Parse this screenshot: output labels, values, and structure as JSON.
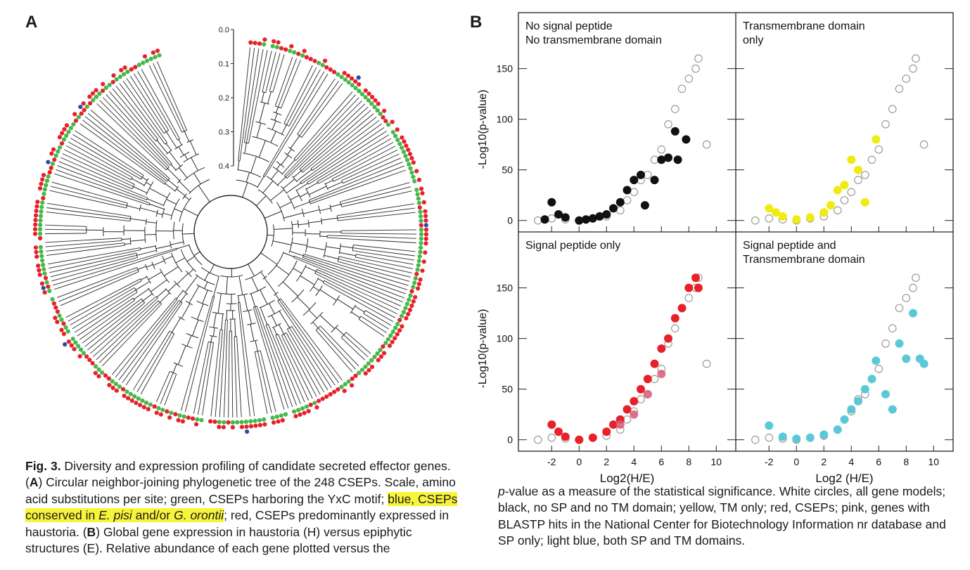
{
  "panel_a": {
    "letter": "A",
    "scale_ticks": [
      "0.0",
      "0.1",
      "0.2",
      "0.3",
      "0.4"
    ],
    "tip_count": 248,
    "colors": {
      "red": "#e8202a",
      "green": "#47b84a",
      "blue": "#2b4aa5",
      "branch": "#2a2a2a"
    }
  },
  "panel_b": {
    "letter": "B",
    "colors": {
      "black": "#111111",
      "yellow": "#f0eb10",
      "red": "#e8202a",
      "pink": "#d9597a",
      "lightblue": "#5bc8d8",
      "open": "#9a9a9a"
    }
  },
  "chart_data": [
    {
      "type": "scatter",
      "title": "No signal peptide\nNo transmembrane domain",
      "xlabel": "",
      "ylabel": "-Log10(p-value)",
      "xlim": [
        -3.5,
        10.5
      ],
      "ylim": [
        -3,
        165
      ],
      "xticks": [],
      "yticks": [
        0,
        50,
        100,
        150
      ],
      "series": [
        {
          "name": "",
          "color": "open",
          "points": [
            [
              -3,
              0
            ],
            [
              -2,
              2
            ],
            [
              -1,
              1
            ],
            [
              0,
              0
            ],
            [
              1,
              2
            ],
            [
              2,
              4
            ],
            [
              3,
              10
            ],
            [
              3.5,
              20
            ],
            [
              4,
              28
            ],
            [
              4.5,
              40
            ],
            [
              5,
              45
            ],
            [
              5.5,
              60
            ],
            [
              6,
              70
            ],
            [
              6.5,
              95
            ],
            [
              7,
              110
            ],
            [
              7.5,
              130
            ],
            [
              8,
              140
            ],
            [
              8.5,
              150
            ],
            [
              8.7,
              160
            ],
            [
              9.3,
              75
            ]
          ]
        },
        {
          "name": "",
          "color": "black",
          "points": [
            [
              -2,
              18
            ],
            [
              -2.5,
              1
            ],
            [
              -1.5,
              6
            ],
            [
              -1,
              3
            ],
            [
              0,
              0
            ],
            [
              0.5,
              1
            ],
            [
              1,
              2
            ],
            [
              1.5,
              4
            ],
            [
              2,
              6
            ],
            [
              2.5,
              12
            ],
            [
              3,
              18
            ],
            [
              3.5,
              30
            ],
            [
              4,
              40
            ],
            [
              4.5,
              45
            ],
            [
              4.8,
              15
            ],
            [
              5.5,
              40
            ],
            [
              6,
              60
            ],
            [
              6.5,
              62
            ],
            [
              7,
              88
            ],
            [
              7.2,
              60
            ],
            [
              7.8,
              80
            ]
          ]
        }
      ]
    },
    {
      "type": "scatter",
      "title": "Transmembrane domain\nonly",
      "xlabel": "",
      "ylabel": "",
      "xlim": [
        -3.5,
        10.5
      ],
      "ylim": [
        -3,
        165
      ],
      "xticks": [],
      "yticks": [],
      "series": [
        {
          "name": "",
          "color": "open",
          "points": [
            [
              -3,
              0
            ],
            [
              -2,
              2
            ],
            [
              -1,
              1
            ],
            [
              0,
              0
            ],
            [
              1,
              2
            ],
            [
              2,
              4
            ],
            [
              3,
              10
            ],
            [
              3.5,
              20
            ],
            [
              4,
              28
            ],
            [
              4.5,
              40
            ],
            [
              5,
              45
            ],
            [
              5.5,
              60
            ],
            [
              6,
              70
            ],
            [
              6.5,
              95
            ],
            [
              7,
              110
            ],
            [
              7.5,
              130
            ],
            [
              8,
              140
            ],
            [
              8.5,
              150
            ],
            [
              8.7,
              160
            ],
            [
              9.3,
              75
            ]
          ]
        },
        {
          "name": "",
          "color": "yellow",
          "points": [
            [
              -2,
              12
            ],
            [
              -1.5,
              8
            ],
            [
              -1,
              4
            ],
            [
              0,
              1
            ],
            [
              1,
              3
            ],
            [
              2,
              8
            ],
            [
              2.5,
              15
            ],
            [
              3,
              30
            ],
            [
              3.5,
              35
            ],
            [
              4,
              60
            ],
            [
              4.5,
              50
            ],
            [
              5,
              18
            ],
            [
              5.8,
              80
            ]
          ]
        }
      ]
    },
    {
      "type": "scatter",
      "title": "Signal peptide only",
      "xlabel": "Log2(H/E)",
      "ylabel": "-Log10(p-value)",
      "xlim": [
        -3.5,
        10.5
      ],
      "ylim": [
        -3,
        165
      ],
      "xticks": [
        -2,
        0,
        2,
        4,
        6,
        8,
        10
      ],
      "yticks": [
        0,
        50,
        100,
        150
      ],
      "series": [
        {
          "name": "",
          "color": "open",
          "points": [
            [
              -3,
              0
            ],
            [
              -2,
              2
            ],
            [
              -1,
              1
            ],
            [
              0,
              0
            ],
            [
              1,
              2
            ],
            [
              2,
              4
            ],
            [
              3,
              10
            ],
            [
              3.5,
              20
            ],
            [
              4,
              28
            ],
            [
              4.5,
              40
            ],
            [
              5,
              45
            ],
            [
              5.5,
              60
            ],
            [
              6,
              70
            ],
            [
              6.5,
              95
            ],
            [
              7,
              110
            ],
            [
              7.5,
              130
            ],
            [
              8,
              140
            ],
            [
              8.5,
              150
            ],
            [
              8.7,
              160
            ],
            [
              9.3,
              75
            ]
          ]
        },
        {
          "name": "",
          "color": "red",
          "points": [
            [
              -2,
              15
            ],
            [
              -1.5,
              8
            ],
            [
              -1,
              3
            ],
            [
              0,
              0
            ],
            [
              1,
              2
            ],
            [
              2,
              8
            ],
            [
              2.5,
              15
            ],
            [
              3,
              20
            ],
            [
              3.5,
              30
            ],
            [
              4,
              38
            ],
            [
              4.5,
              50
            ],
            [
              5,
              60
            ],
            [
              5.5,
              75
            ],
            [
              6,
              90
            ],
            [
              6.5,
              100
            ],
            [
              7,
              120
            ],
            [
              7.5,
              130
            ],
            [
              8,
              150
            ],
            [
              8.5,
              160
            ],
            [
              8.7,
              150
            ]
          ]
        },
        {
          "name": "",
          "color": "pink",
          "points": [
            [
              3,
              15
            ],
            [
              4,
              25
            ],
            [
              5,
              45
            ],
            [
              6,
              65
            ]
          ]
        }
      ]
    },
    {
      "type": "scatter",
      "title": "Signal peptide and\nTransmembrane domain",
      "xlabel": "Log2 (H/E)",
      "ylabel": "",
      "xlim": [
        -3.5,
        10.5
      ],
      "ylim": [
        -3,
        165
      ],
      "xticks": [
        -2,
        0,
        2,
        4,
        6,
        8,
        10
      ],
      "yticks": [],
      "series": [
        {
          "name": "",
          "color": "open",
          "points": [
            [
              -3,
              0
            ],
            [
              -2,
              2
            ],
            [
              -1,
              1
            ],
            [
              0,
              0
            ],
            [
              1,
              2
            ],
            [
              2,
              4
            ],
            [
              3,
              10
            ],
            [
              3.5,
              20
            ],
            [
              4,
              28
            ],
            [
              4.5,
              40
            ],
            [
              5,
              45
            ],
            [
              5.5,
              60
            ],
            [
              6,
              70
            ],
            [
              6.5,
              95
            ],
            [
              7,
              110
            ],
            [
              7.5,
              130
            ],
            [
              8,
              140
            ],
            [
              8.5,
              150
            ],
            [
              8.7,
              160
            ],
            [
              9.3,
              75
            ]
          ]
        },
        {
          "name": "",
          "color": "lightblue",
          "points": [
            [
              -2,
              14
            ],
            [
              -1,
              3
            ],
            [
              0,
              1
            ],
            [
              1,
              2
            ],
            [
              2,
              5
            ],
            [
              3,
              10
            ],
            [
              3.5,
              20
            ],
            [
              4,
              30
            ],
            [
              4.5,
              38
            ],
            [
              5,
              50
            ],
            [
              5.5,
              60
            ],
            [
              5.8,
              78
            ],
            [
              6.5,
              45
            ],
            [
              7,
              30
            ],
            [
              7.5,
              95
            ],
            [
              8,
              80
            ],
            [
              8.5,
              125
            ],
            [
              9,
              80
            ],
            [
              9.3,
              75
            ]
          ]
        }
      ]
    }
  ],
  "caption_left": {
    "fig": "Fig. 3.",
    "t1": " Diversity and expression profiling of candidate secreted effector genes. (",
    "a": "A",
    "t2": ") Circular neighbor-joining phylogenetic tree of the 248 CSEPs. Scale, amino acid substitutions per site; green, CSEPs harboring the YxC motif; ",
    "hl1": "blue, CSEPs conserved in ",
    "hl_i1": "E. pisi",
    "hl2": " and/or ",
    "hl_i2": "G. orontii",
    "t3": "; red, CSEPs predominantly expressed in haustoria. (",
    "b": "B",
    "t4": ") Global gene expression in haustoria (H) versus epiphytic structures (E). Relative abundance of each gene plotted versus the"
  },
  "caption_right": {
    "p": "p",
    "t1": "-value as a measure of the statistical significance. White circles, all gene models; black, no SP and no TM domain; yellow, TM only; red, CSEPs; pink, genes with BLASTP hits in the National Center for Biotechnology Information nr database and SP only; light blue, both SP and TM domains."
  }
}
